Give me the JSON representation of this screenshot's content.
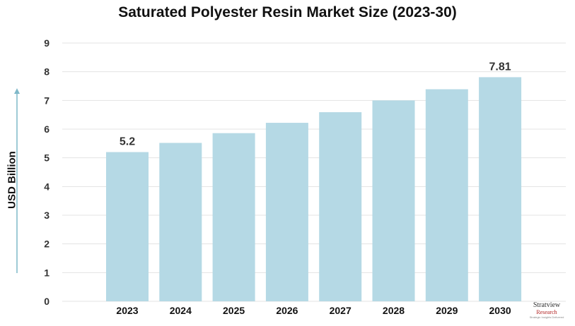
{
  "chart_data": {
    "type": "bar",
    "title": "Saturated Polyester Resin Market Size (2023-30)",
    "xlabel": "",
    "ylabel": "USD Billion",
    "categories": [
      "2023",
      "2024",
      "2025",
      "2026",
      "2027",
      "2028",
      "2029",
      "2030"
    ],
    "values": [
      5.2,
      5.52,
      5.86,
      6.22,
      6.59,
      7.0,
      7.39,
      7.81
    ],
    "data_labels": [
      "5.2",
      "",
      "",
      "",
      "",
      "",
      "",
      "7.81"
    ],
    "ylim": [
      0,
      9
    ],
    "yticks": [
      "0",
      "1",
      "2",
      "3",
      "4",
      "5",
      "6",
      "7",
      "8",
      "9"
    ],
    "grid": true,
    "bar_color": "#b5d9e5",
    "axis_arrow_color": "#7fb8c9"
  },
  "logo": {
    "line1": "Stratview",
    "line2": "Research",
    "line3": "Strategic Insights Delivered"
  }
}
